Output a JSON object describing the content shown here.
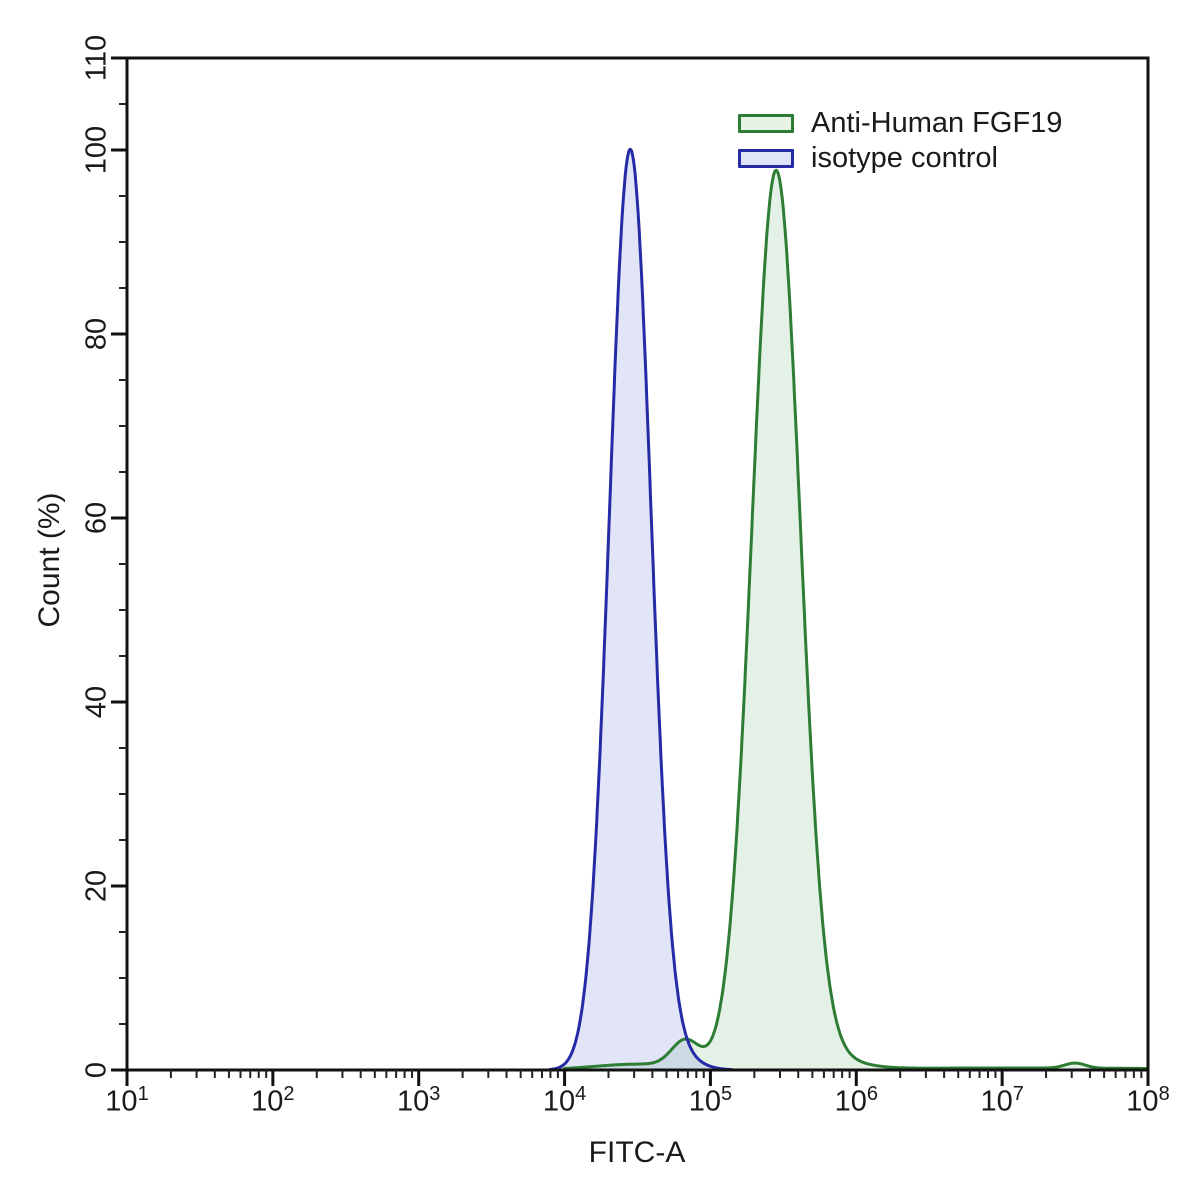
{
  "chart_data": {
    "type": "area",
    "subtype": "flow-cytometry-histogram-overlay",
    "title": "",
    "xlabel": "FITC-A",
    "ylabel": "Count (%)",
    "x_scale": "log10",
    "x_range_log10": [
      1,
      8
    ],
    "x_tick_base": "10",
    "x_tick_exponents": [
      1,
      2,
      3,
      4,
      5,
      6,
      7,
      8
    ],
    "x_minor_mantissas": [
      2,
      3,
      4,
      5,
      6,
      7,
      8,
      9
    ],
    "y_range": [
      0,
      110
    ],
    "y_ticks": [
      0,
      20,
      40,
      60,
      80,
      100,
      110
    ],
    "y_minor_step": 5,
    "grid": false,
    "plot_box_color": "#111111",
    "legend_position": "top-right",
    "series": [
      {
        "name": "Anti-Human FGF19",
        "line_color": "#2e7d34",
        "fill_color": "rgba(105,175,115,0.18)",
        "swatch_fill": "#e8f3e8",
        "peak_x": 280000,
        "peak_log10x": 5.45,
        "peak_y_pct": 97.5,
        "shoulder_bump": {
          "log10x": 4.83,
          "y_pct": 3
        },
        "domain_log10": [
          4.0,
          8.0
        ],
        "components": [
          {
            "center_log10": 5.45,
            "sigma_log10": 0.165,
            "amplitude_pct": 97.5
          },
          {
            "center_log10": 4.83,
            "sigma_log10": 0.095,
            "amplitude_pct": 2.9
          },
          {
            "center_log10": 4.5,
            "sigma_log10": 0.3,
            "amplitude_pct": 0.6
          },
          {
            "center_log10": 5.82,
            "sigma_log10": 0.2,
            "amplitude_pct": 1.0
          },
          {
            "center_log10": 7.0,
            "sigma_log10": 1.3,
            "amplitude_pct": 0.22
          },
          {
            "center_log10": 7.5,
            "sigma_log10": 0.07,
            "amplitude_pct": 0.55
          }
        ]
      },
      {
        "name": "isotype control",
        "line_color": "#252ba6",
        "fill_color": "rgba(125,135,220,0.22)",
        "swatch_fill": "#e0e4f8",
        "peak_x": 28000,
        "peak_log10x": 4.45,
        "peak_y_pct": 100,
        "domain_log10": [
          3.9,
          5.15
        ],
        "components": [
          {
            "center_log10": 4.45,
            "sigma_log10": 0.142,
            "amplitude_pct": 100
          },
          {
            "center_log10": 4.78,
            "sigma_log10": 0.14,
            "amplitude_pct": 1.2
          }
        ]
      }
    ]
  }
}
